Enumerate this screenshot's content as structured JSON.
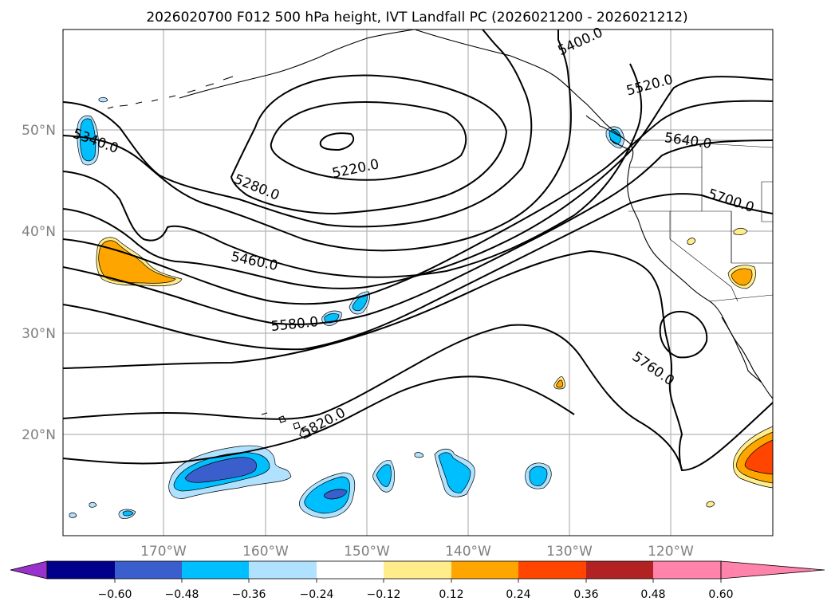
{
  "title": "2026020700 F012 500 hPa height, IVT Landfall PC (2026021200 - 2026021212)",
  "lat_labels": [
    "50°N",
    "40°N",
    "30°N",
    "20°N"
  ],
  "lon_labels": [
    "170°W",
    "160°W",
    "150°W",
    "140°W",
    "130°W",
    "120°W"
  ],
  "contour_labels": [
    "5220.0",
    "5280.0",
    "5340.0",
    "5400.0",
    "5460.0",
    "5520.0",
    "5580.0",
    "5640.0",
    "5700.0",
    "5760.0",
    "5820.0"
  ],
  "colorbar": {
    "tick_labels": [
      "−0.60",
      "−0.48",
      "−0.36",
      "−0.24",
      "−0.12",
      "0.12",
      "0.24",
      "0.36",
      "0.48",
      "0.60"
    ],
    "colors": [
      "#9932cc",
      "#00008b",
      "#3a5fcd",
      "#00bfff",
      "#b0e2ff",
      "#ffffff",
      "#ffec8b",
      "#ffa500",
      "#ff4500",
      "#b22222",
      "#ff83aa"
    ]
  },
  "fill_colors": {
    "neg_light": "#b0e2ff",
    "neg_mid": "#00bfff",
    "neg_strong": "#3a5fcd",
    "pos_light": "#ffec8b",
    "pos_mid": "#ffa500",
    "pos_strong": "#ff4500"
  }
}
